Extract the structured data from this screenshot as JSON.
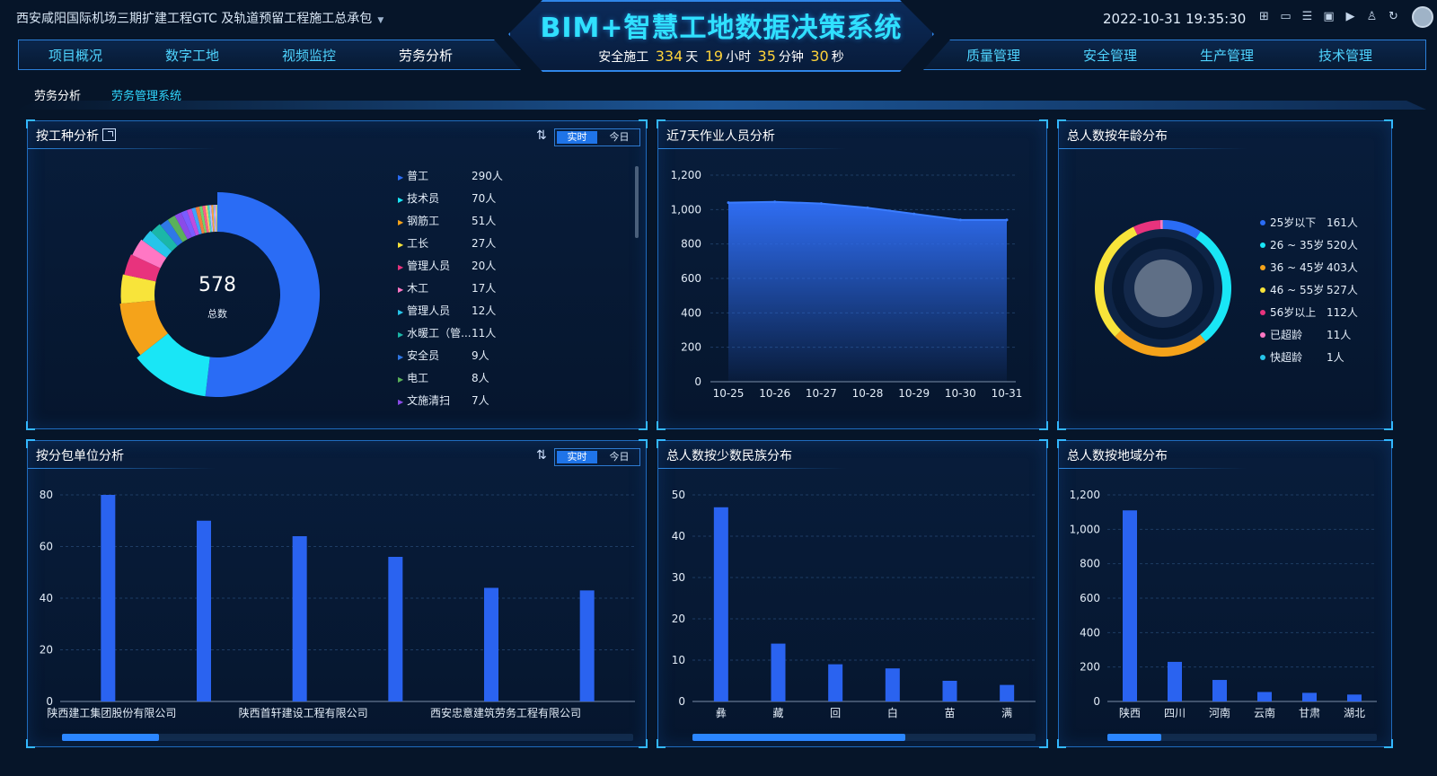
{
  "header": {
    "project_name": "西安咸阳国际机场三期扩建工程GTC 及轨道预留工程施工总承包",
    "main_title": "BIM+智慧工地数据决策系统",
    "safety_prefix": "安全施工",
    "safety_days": "334",
    "safety_days_unit": "天",
    "safety_hours": "19",
    "safety_hours_unit": "小时",
    "safety_minutes": "35",
    "safety_minutes_unit": "分钟",
    "safety_seconds": "30",
    "safety_seconds_unit": "秒",
    "datetime": "2022-10-31 19:35:30",
    "nav_left": [
      "项目概况",
      "数字工地",
      "视频监控",
      "劳务分析"
    ],
    "nav_right": [
      "质量管理",
      "安全管理",
      "生产管理",
      "技术管理"
    ],
    "active_nav": "劳务分析",
    "icons": [
      "grid-icon",
      "monitor-icon",
      "list-icon",
      "screen-icon",
      "video-icon",
      "shirt-icon",
      "refresh-icon"
    ]
  },
  "breadcrumb": [
    "劳务分析",
    "劳务管理系统"
  ],
  "toggle": {
    "realtime": "实时",
    "today": "今日"
  },
  "worktype": {
    "title": "按工种分析",
    "total": "578",
    "total_label": "总数",
    "items": [
      {
        "name": "普工",
        "value": "290人",
        "n": 290,
        "color": "#2a6cf5"
      },
      {
        "name": "技术员",
        "value": "70人",
        "n": 70,
        "color": "#19e6f6"
      },
      {
        "name": "钢筋工",
        "value": "51人",
        "n": 51,
        "color": "#f5a31a"
      },
      {
        "name": "工长",
        "value": "27人",
        "n": 27,
        "color": "#f8e43a"
      },
      {
        "name": "管理人员",
        "value": "20人",
        "n": 20,
        "color": "#e8337d"
      },
      {
        "name": "木工",
        "value": "17人",
        "n": 17,
        "color": "#ff77c4"
      },
      {
        "name": "管理人员",
        "value": "12人",
        "n": 12,
        "color": "#26c5ea"
      },
      {
        "name": "水暖工（管...",
        "value": "11人",
        "n": 11,
        "color": "#1bb7a8"
      },
      {
        "name": "安全员",
        "value": "9人",
        "n": 9,
        "color": "#2f78e6"
      },
      {
        "name": "电工",
        "value": "8人",
        "n": 8,
        "color": "#5ab15a"
      },
      {
        "name": "文施清扫",
        "value": "7人",
        "n": 7,
        "color": "#8a4be8"
      }
    ],
    "small_slices": [
      6,
      5,
      4,
      4,
      3,
      3,
      2,
      2,
      2,
      2,
      1,
      1,
      1,
      1
    ]
  },
  "seven_day": {
    "title": "近7天作业人员分析",
    "chart_data": {
      "type": "area",
      "x": [
        "10-25",
        "10-26",
        "10-27",
        "10-28",
        "10-29",
        "10-30",
        "10-31"
      ],
      "values": [
        1040,
        1045,
        1035,
        1010,
        975,
        940,
        940
      ],
      "ylim": [
        0,
        1200
      ],
      "yticks": [
        "0",
        "200",
        "400",
        "600",
        "800",
        "1,000",
        "1,200"
      ]
    }
  },
  "age": {
    "title": "总人数按年龄分布",
    "items": [
      {
        "name": "25岁以下",
        "value": "161人",
        "n": 161,
        "color": "#2a6cf5"
      },
      {
        "name": "26 ~ 35岁",
        "value": "520人",
        "n": 520,
        "color": "#19e6f6"
      },
      {
        "name": "36 ~ 45岁",
        "value": "403人",
        "n": 403,
        "color": "#f5a31a"
      },
      {
        "name": "46 ~ 55岁",
        "value": "527人",
        "n": 527,
        "color": "#f8e43a"
      },
      {
        "name": "56岁以上",
        "value": "112人",
        "n": 112,
        "color": "#e8337d"
      },
      {
        "name": "已超龄",
        "value": "11人",
        "n": 11,
        "color": "#ff77c4"
      },
      {
        "name": "快超龄",
        "value": "1人",
        "n": 1,
        "color": "#26c5ea"
      }
    ]
  },
  "subcontract": {
    "title": "按分包单位分析",
    "chart_data": {
      "type": "bar",
      "categories": [
        "陕西建工集团股份有限公司",
        "",
        "陕西首轩建设工程有限公司",
        "",
        "西安忠意建筑劳务工程有限公司",
        ""
      ],
      "values": [
        80,
        70,
        64,
        56,
        44,
        43
      ],
      "ylim": [
        0,
        80
      ],
      "yticks": [
        "0",
        "20",
        "40",
        "60",
        "80"
      ]
    },
    "scroll_fraction": 0.17
  },
  "ethnic": {
    "title": "总人数按少数民族分布",
    "chart_data": {
      "type": "bar",
      "categories": [
        "彝",
        "藏",
        "回",
        "白",
        "苗",
        "满"
      ],
      "values": [
        47,
        14,
        9,
        8,
        5,
        4
      ],
      "ylim": [
        0,
        50
      ],
      "yticks": [
        "0",
        "10",
        "20",
        "30",
        "40",
        "50"
      ]
    },
    "scroll_fraction": 0.62
  },
  "region": {
    "title": "总人数按地域分布",
    "chart_data": {
      "type": "bar",
      "categories": [
        "陕西",
        "四川",
        "河南",
        "云南",
        "甘肃",
        "湖北"
      ],
      "values": [
        1110,
        230,
        125,
        55,
        50,
        40
      ],
      "ylim": [
        0,
        1200
      ],
      "yticks": [
        "0",
        "200",
        "400",
        "600",
        "800",
        "1,000",
        "1,200"
      ]
    },
    "scroll_fraction": 0.2
  }
}
